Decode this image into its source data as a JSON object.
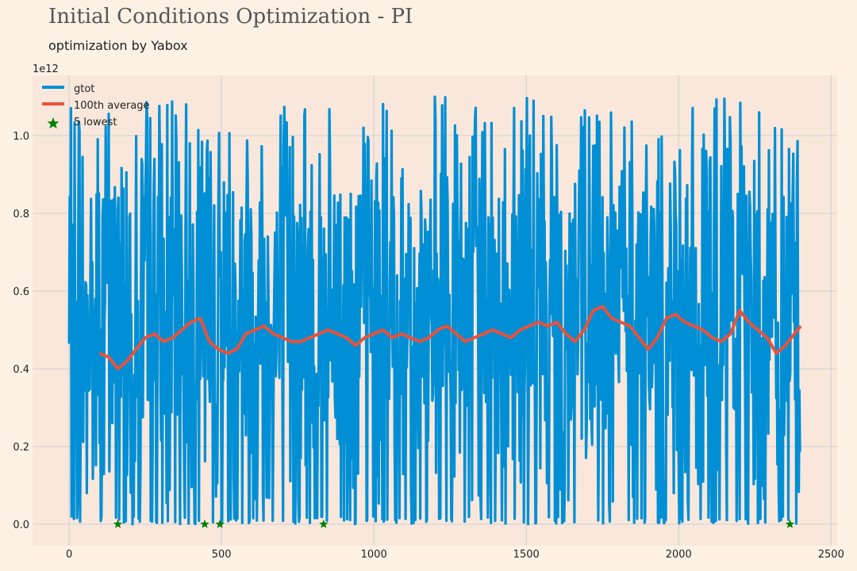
{
  "header": {
    "title": "Initial Conditions Optimization - PI",
    "subtitle": "optimization by Yabox"
  },
  "chart_data": {
    "type": "line",
    "title": "Initial Conditions Optimization - PI",
    "subtitle": "optimization by Yabox",
    "xlabel": "",
    "ylabel": "",
    "y_offset_text": "1e12",
    "xlim": [
      -120,
      2520
    ],
    "ylim": [
      -0.055,
      1.155
    ],
    "x_ticks": [
      0,
      500,
      1000,
      1500,
      2000,
      2500
    ],
    "y_ticks": [
      0.0,
      0.2,
      0.4,
      0.6,
      0.8,
      1.0
    ],
    "y_tick_labels": [
      "0.0",
      "0.2",
      "0.4",
      "0.6",
      "0.8",
      "1.0"
    ],
    "grid": true,
    "legend_position": "top-left",
    "n_points": 2400,
    "series": [
      {
        "name": "gtot",
        "kind": "line",
        "color": "#008fd5",
        "note": "noisy trace; values fluctuate between ~0.0 and ~1.1 (x1e12) across x = 0..2400",
        "x_range": [
          0,
          2400
        ],
        "y_min": 0.0,
        "y_max": 1.1
      },
      {
        "name": "100th average",
        "kind": "line",
        "color": "#e5533d",
        "x": [
          100,
          130,
          160,
          190,
          220,
          250,
          280,
          310,
          340,
          370,
          400,
          430,
          460,
          490,
          520,
          550,
          580,
          610,
          640,
          670,
          700,
          730,
          760,
          790,
          820,
          850,
          880,
          910,
          940,
          970,
          1000,
          1030,
          1060,
          1090,
          1120,
          1150,
          1180,
          1210,
          1240,
          1270,
          1300,
          1330,
          1360,
          1390,
          1420,
          1450,
          1480,
          1510,
          1540,
          1570,
          1600,
          1630,
          1660,
          1690,
          1720,
          1750,
          1780,
          1810,
          1840,
          1870,
          1900,
          1930,
          1960,
          1990,
          2020,
          2050,
          2080,
          2110,
          2140,
          2170,
          2200,
          2230,
          2260,
          2290,
          2320,
          2350,
          2380,
          2400
        ],
        "y": [
          0.44,
          0.43,
          0.4,
          0.42,
          0.45,
          0.48,
          0.49,
          0.47,
          0.48,
          0.5,
          0.52,
          0.53,
          0.47,
          0.45,
          0.44,
          0.45,
          0.49,
          0.5,
          0.51,
          0.49,
          0.48,
          0.47,
          0.47,
          0.48,
          0.49,
          0.5,
          0.49,
          0.48,
          0.46,
          0.48,
          0.49,
          0.5,
          0.48,
          0.49,
          0.48,
          0.47,
          0.48,
          0.5,
          0.51,
          0.49,
          0.47,
          0.48,
          0.49,
          0.5,
          0.49,
          0.48,
          0.5,
          0.51,
          0.52,
          0.51,
          0.52,
          0.49,
          0.47,
          0.5,
          0.55,
          0.56,
          0.53,
          0.52,
          0.51,
          0.48,
          0.45,
          0.48,
          0.53,
          0.54,
          0.52,
          0.51,
          0.5,
          0.48,
          0.47,
          0.49,
          0.55,
          0.52,
          0.5,
          0.48,
          0.44,
          0.46,
          0.49,
          0.51
        ]
      },
      {
        "name": "5 lowest",
        "kind": "scatter",
        "marker": "star",
        "color": "#008000",
        "x": [
          160,
          445,
          495,
          835,
          2365
        ],
        "y": [
          0.0,
          0.0,
          0.0,
          0.0,
          0.0
        ]
      }
    ]
  }
}
